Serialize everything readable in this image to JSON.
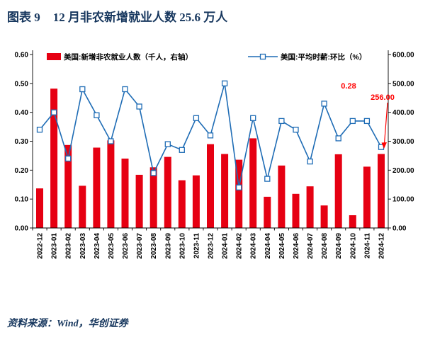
{
  "header": {
    "label": "图表 9",
    "title": "12 月非农新增就业人数 25.6 万人"
  },
  "footer": {
    "source": "资料来源：Wind，华创证券"
  },
  "colors": {
    "bar": "#e60012",
    "line": "#1e6cb5",
    "title_navy": "#17375e",
    "annotation_red": "#ff0000",
    "axis": "#000000",
    "marker_fill": "#ffffff"
  },
  "chart_data": {
    "type": "bar",
    "combo": true,
    "categories": [
      "2022-12",
      "2023-01",
      "2023-02",
      "2023-03",
      "2023-04",
      "2023-05",
      "2023-06",
      "2023-07",
      "2023-08",
      "2023-09",
      "2023-10",
      "2023-11",
      "2023-12",
      "2024-01",
      "2024-02",
      "2024-03",
      "2024-04",
      "2024-05",
      "2024-06",
      "2024-07",
      "2024-08",
      "2024-09",
      "2024-10",
      "2024-11",
      "2024-12"
    ],
    "series": [
      {
        "name": "美国:新增非农就业人数（千人，右轴）",
        "kind": "bar",
        "axis": "right",
        "values": [
          137,
          482,
          287,
          146,
          278,
          303,
          240,
          184,
          210,
          246,
          165,
          182,
          290,
          256,
          236,
          310,
          108,
          216,
          118,
          144,
          78,
          255,
          44,
          212,
          256
        ]
      },
      {
        "name": "美国:平均时薪:环比（%）",
        "kind": "line",
        "axis": "left",
        "values": [
          0.34,
          0.4,
          0.24,
          0.48,
          0.39,
          0.3,
          0.48,
          0.42,
          0.19,
          0.29,
          0.27,
          0.38,
          0.32,
          0.5,
          0.14,
          0.38,
          0.17,
          0.37,
          0.34,
          0.23,
          0.43,
          0.31,
          0.37,
          0.37,
          0.28
        ]
      }
    ],
    "left_axis": {
      "min": 0,
      "max": 0.6,
      "step": 0.1,
      "decimals": 2
    },
    "right_axis": {
      "min": 0,
      "max": 600,
      "step": 100,
      "decimals": 2
    },
    "annotations": [
      {
        "text": "0.28",
        "series": "美国:平均时薪:环比（%）",
        "category": "2024-12"
      },
      {
        "text": "256.00",
        "series": "美国:新增非农就业人数（千人，右轴）",
        "category": "2024-12"
      }
    ],
    "grid": false,
    "legend_position": "top"
  }
}
